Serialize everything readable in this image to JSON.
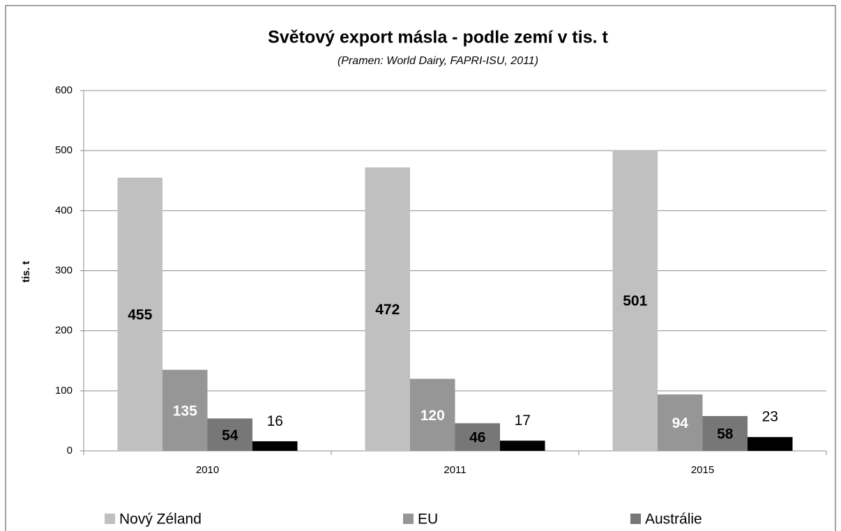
{
  "chart_data": {
    "type": "bar",
    "title": "Světový export másla - podle zemí v tis. t",
    "subtitle": "(Pramen: World Dairy, FAPRI-ISU, 2011)",
    "y_label": "tis. t",
    "categories": [
      "2010",
      "2011",
      "2015"
    ],
    "series": [
      {
        "name": "Nový Zéland",
        "color": "#c0c0c0",
        "values": [
          455,
          472,
          501
        ]
      },
      {
        "name": "EU",
        "color": "#969696",
        "values": [
          135,
          120,
          94
        ]
      },
      {
        "name": "Austrálie",
        "color": "#777777",
        "values": [
          54,
          46,
          58
        ]
      },
      {
        "color": "#000000",
        "values": [
          16,
          17,
          23
        ]
      }
    ],
    "ylim": [
      0,
      600
    ],
    "yticks": [
      0,
      100,
      200,
      300,
      400,
      500,
      600
    ],
    "grid": true,
    "legend": "bottom"
  }
}
